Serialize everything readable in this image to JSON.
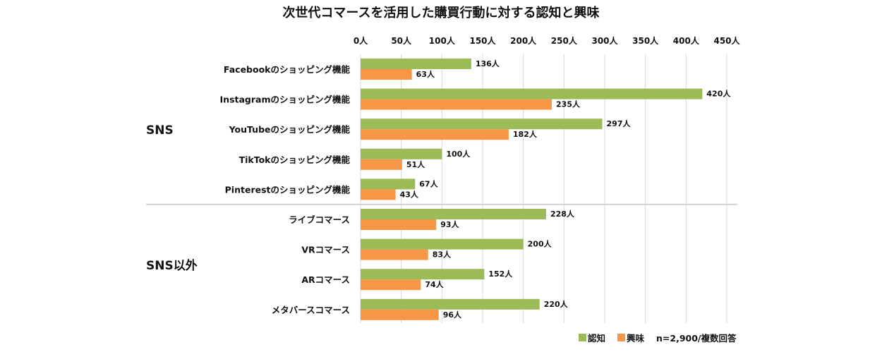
{
  "chart_data": {
    "type": "bar",
    "orientation": "horizontal",
    "title": "次世代コマースを活用した購買行動に対する認知と興味",
    "groups": [
      {
        "label": "SNS",
        "categories": [
          "Facebookのショッピング機能",
          "Instagramのショッピング機能",
          "YouTubeのショッピング機能",
          "TikTokのショッピング機能",
          "Pinterestのショッピング機能"
        ]
      },
      {
        "label": "SNS以外",
        "categories": [
          "ライブコマース",
          "VRコマース",
          "ARコマース",
          "メタバースコマース"
        ]
      }
    ],
    "categories": [
      "Facebookのショッピング機能",
      "Instagramのショッピング機能",
      "YouTubeのショッピング機能",
      "TikTokのショッピング機能",
      "Pinterestのショッピング機能",
      "ライブコマース",
      "VRコマース",
      "ARコマース",
      "メタバースコマース"
    ],
    "series": [
      {
        "name": "認知",
        "color": "#9bbb59",
        "values": [
          136,
          420,
          297,
          100,
          67,
          228,
          200,
          152,
          220
        ]
      },
      {
        "name": "興味",
        "color": "#f79646",
        "values": [
          63,
          235,
          182,
          51,
          43,
          93,
          83,
          74,
          96
        ]
      }
    ],
    "unit": "人",
    "xlim": [
      0,
      450
    ],
    "ticks": [
      0,
      50,
      100,
      150,
      200,
      250,
      300,
      350,
      400,
      450
    ],
    "tick_labels": [
      "0人",
      "50人",
      "100人",
      "150人",
      "200人",
      "250人",
      "300人",
      "350人",
      "400人",
      "450人"
    ],
    "x_axis_position": "top",
    "grid": true,
    "legend": "bottom-right",
    "note": "n=2,900/複数回答"
  }
}
